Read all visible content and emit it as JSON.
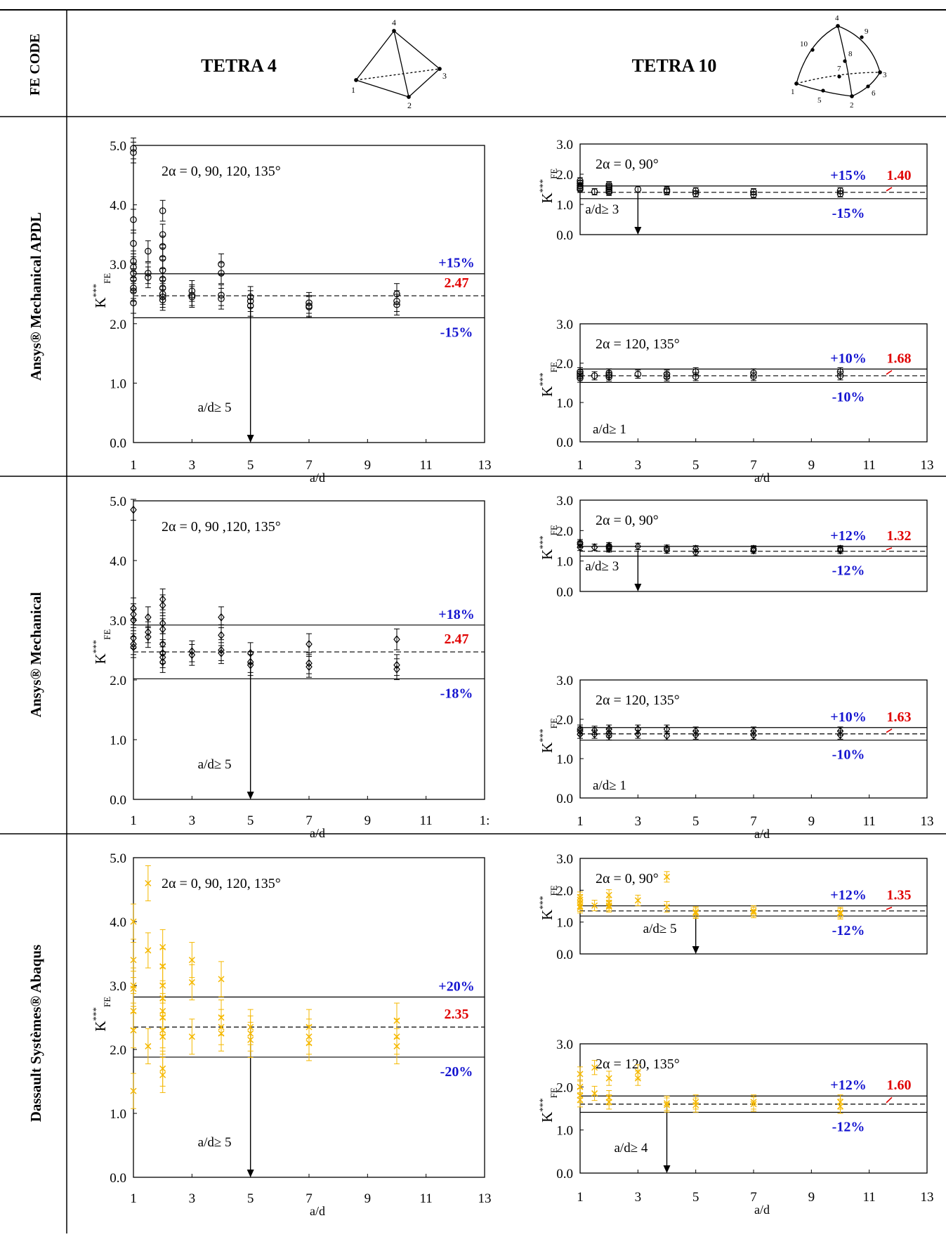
{
  "header": {
    "col_label": "FE CODE",
    "tetra4_label": "TETRA 4",
    "tetra10_label": "TETRA 10",
    "tetra4_nodes": [
      "1",
      "2",
      "3",
      "4"
    ],
    "tetra10_nodes": [
      "1",
      "2",
      "3",
      "4",
      "5",
      "6",
      "7",
      "8",
      "9",
      "10"
    ]
  },
  "rows": [
    {
      "label": "Ansys® Mechanical APDL"
    },
    {
      "label": "Ansys® Mechanical"
    },
    {
      "label": "Dassault Systèmes® Abaqus"
    }
  ],
  "colors": {
    "black": "#000000",
    "orange": "#f5b800",
    "blue": "#1515d0",
    "red": "#e00000"
  },
  "chart_data": [
    {
      "type": "scatter",
      "row": 0,
      "element": "TETRA 4",
      "title": "2α = 0, 90, 120, 135°",
      "xlabel": "a/d",
      "ylabel": "K***FE",
      "xlim": [
        1,
        13
      ],
      "ylim": [
        0,
        5
      ],
      "xticks": [
        "1",
        "3",
        "5",
        "7",
        "9",
        "11",
        "13"
      ],
      "yticks": [
        "0.0",
        "1.0",
        "2.0",
        "3.0",
        "4.0",
        "5.0"
      ],
      "mean": 2.47,
      "mean_label": "2.47",
      "upper": 2.84,
      "upper_label": "+15%",
      "lower": 2.1,
      "lower_label": "-15%",
      "threshold": 5,
      "threshold_label": "a/d≥ 5",
      "marker": "circle",
      "color": "#000000",
      "points": [
        {
          "x": 1,
          "y": 4.95
        },
        {
          "x": 1,
          "y": 4.88
        },
        {
          "x": 1,
          "y": 3.75
        },
        {
          "x": 1,
          "y": 3.35
        },
        {
          "x": 1,
          "y": 3.05
        },
        {
          "x": 1,
          "y": 2.95
        },
        {
          "x": 1,
          "y": 2.85
        },
        {
          "x": 1,
          "y": 2.75
        },
        {
          "x": 1,
          "y": 2.6
        },
        {
          "x": 1,
          "y": 2.55
        },
        {
          "x": 1,
          "y": 2.35
        },
        {
          "x": 1.5,
          "y": 3.22
        },
        {
          "x": 1.5,
          "y": 2.85
        },
        {
          "x": 1.5,
          "y": 2.78
        },
        {
          "x": 2,
          "y": 3.9
        },
        {
          "x": 2,
          "y": 3.5
        },
        {
          "x": 2,
          "y": 3.3
        },
        {
          "x": 2,
          "y": 3.1
        },
        {
          "x": 2,
          "y": 2.9
        },
        {
          "x": 2,
          "y": 2.75
        },
        {
          "x": 2,
          "y": 2.6
        },
        {
          "x": 2,
          "y": 2.5
        },
        {
          "x": 2,
          "y": 2.45
        },
        {
          "x": 2,
          "y": 2.4
        },
        {
          "x": 3,
          "y": 2.55
        },
        {
          "x": 3,
          "y": 2.48
        },
        {
          "x": 3,
          "y": 2.45
        },
        {
          "x": 4,
          "y": 3.0
        },
        {
          "x": 4,
          "y": 2.85
        },
        {
          "x": 4,
          "y": 2.48
        },
        {
          "x": 4,
          "y": 2.42
        },
        {
          "x": 5,
          "y": 2.45
        },
        {
          "x": 5,
          "y": 2.38
        },
        {
          "x": 5,
          "y": 2.3
        },
        {
          "x": 7,
          "y": 2.35
        },
        {
          "x": 7,
          "y": 2.3
        },
        {
          "x": 7,
          "y": 2.28
        },
        {
          "x": 10,
          "y": 2.5
        },
        {
          "x": 10,
          "y": 2.38
        },
        {
          "x": 10,
          "y": 2.32
        }
      ]
    },
    {
      "type": "scatter",
      "row": 0,
      "element": "TETRA 10",
      "title": "2α = 0, 90°",
      "xlabel": "",
      "ylabel": "K***FE",
      "xlim": [
        1,
        13
      ],
      "ylim": [
        0,
        3
      ],
      "xticks": [],
      "yticks": [
        "0.0",
        "1.0",
        "2.0",
        "3.0"
      ],
      "mean": 1.4,
      "mean_label": "1.40",
      "upper": 1.61,
      "upper_label": "+15%",
      "lower": 1.19,
      "lower_label": "-15%",
      "threshold": 3,
      "threshold_label": "a/d≥ 3",
      "marker": "circle",
      "color": "#000000",
      "points": [
        {
          "x": 1,
          "y": 1.78
        },
        {
          "x": 1,
          "y": 1.7
        },
        {
          "x": 1,
          "y": 1.62
        },
        {
          "x": 1,
          "y": 1.55
        },
        {
          "x": 1,
          "y": 1.5
        },
        {
          "x": 1.5,
          "y": 1.42
        },
        {
          "x": 2,
          "y": 1.65
        },
        {
          "x": 2,
          "y": 1.58
        },
        {
          "x": 2,
          "y": 1.52
        },
        {
          "x": 2,
          "y": 1.45
        },
        {
          "x": 2,
          "y": 1.4
        },
        {
          "x": 3,
          "y": 1.5
        },
        {
          "x": 4,
          "y": 1.48
        },
        {
          "x": 4,
          "y": 1.42
        },
        {
          "x": 5,
          "y": 1.45
        },
        {
          "x": 5,
          "y": 1.35
        },
        {
          "x": 7,
          "y": 1.42
        },
        {
          "x": 7,
          "y": 1.32
        },
        {
          "x": 10,
          "y": 1.45
        },
        {
          "x": 10,
          "y": 1.35
        }
      ]
    },
    {
      "type": "scatter",
      "row": 0,
      "element": "TETRA 10",
      "title": "2α = 120, 135°",
      "xlabel": "a/d",
      "ylabel": "K***FE",
      "xlim": [
        1,
        13
      ],
      "ylim": [
        0,
        3
      ],
      "xticks": [
        "1",
        "3",
        "5",
        "7",
        "9",
        "11",
        "13"
      ],
      "yticks": [
        "0.0",
        "1.0",
        "2.0",
        "3.0"
      ],
      "mean": 1.68,
      "mean_label": "1.68",
      "upper": 1.85,
      "upper_label": "+10%",
      "lower": 1.51,
      "lower_label": "-10%",
      "threshold": 1,
      "threshold_label": "a/d≥ 1",
      "marker": "circle",
      "color": "#000000",
      "points": [
        {
          "x": 1,
          "y": 1.78
        },
        {
          "x": 1,
          "y": 1.72
        },
        {
          "x": 1,
          "y": 1.68
        },
        {
          "x": 1,
          "y": 1.62
        },
        {
          "x": 1.5,
          "y": 1.68
        },
        {
          "x": 2,
          "y": 1.75
        },
        {
          "x": 2,
          "y": 1.7
        },
        {
          "x": 2,
          "y": 1.65
        },
        {
          "x": 3,
          "y": 1.72
        },
        {
          "x": 4,
          "y": 1.72
        },
        {
          "x": 4,
          "y": 1.65
        },
        {
          "x": 5,
          "y": 1.78
        },
        {
          "x": 5,
          "y": 1.66
        },
        {
          "x": 7,
          "y": 1.75
        },
        {
          "x": 7,
          "y": 1.66
        },
        {
          "x": 10,
          "y": 1.78
        },
        {
          "x": 10,
          "y": 1.68
        }
      ]
    },
    {
      "type": "scatter",
      "row": 1,
      "element": "TETRA 4",
      "title": "2α = 0, 90 ,120, 135°",
      "xlabel": "a/d",
      "ylabel": "K***FE",
      "xlim": [
        1,
        13
      ],
      "ylim": [
        0,
        5
      ],
      "xticks": [
        "1",
        "3",
        "5",
        "7",
        "9",
        "11",
        "1:"
      ],
      "yticks": [
        "0.0",
        "1.0",
        "2.0",
        "3.0",
        "4.0",
        "5.0"
      ],
      "mean": 2.47,
      "mean_label": "2.47",
      "upper": 2.92,
      "upper_label": "+18%",
      "lower": 2.02,
      "lower_label": "-18%",
      "threshold": 5,
      "threshold_label": "a/d≥ 5",
      "marker": "diamond",
      "color": "#000000",
      "points": [
        {
          "x": 1,
          "y": 4.85
        },
        {
          "x": 1,
          "y": 3.2
        },
        {
          "x": 1,
          "y": 3.1
        },
        {
          "x": 1,
          "y": 3.0
        },
        {
          "x": 1,
          "y": 2.7
        },
        {
          "x": 1,
          "y": 2.6
        },
        {
          "x": 1,
          "y": 2.55
        },
        {
          "x": 1.5,
          "y": 3.05
        },
        {
          "x": 1.5,
          "y": 2.8
        },
        {
          "x": 1.5,
          "y": 2.72
        },
        {
          "x": 2,
          "y": 3.35
        },
        {
          "x": 2,
          "y": 3.25
        },
        {
          "x": 2,
          "y": 2.95
        },
        {
          "x": 2,
          "y": 2.85
        },
        {
          "x": 2,
          "y": 2.6
        },
        {
          "x": 2,
          "y": 2.45
        },
        {
          "x": 2,
          "y": 2.38
        },
        {
          "x": 2,
          "y": 2.3
        },
        {
          "x": 3,
          "y": 2.48
        },
        {
          "x": 3,
          "y": 2.42
        },
        {
          "x": 4,
          "y": 3.05
        },
        {
          "x": 4,
          "y": 2.75
        },
        {
          "x": 4,
          "y": 2.5
        },
        {
          "x": 4,
          "y": 2.45
        },
        {
          "x": 5,
          "y": 2.45
        },
        {
          "x": 5,
          "y": 2.3
        },
        {
          "x": 5,
          "y": 2.25
        },
        {
          "x": 7,
          "y": 2.6
        },
        {
          "x": 7,
          "y": 2.28
        },
        {
          "x": 7,
          "y": 2.22
        },
        {
          "x": 10,
          "y": 2.68
        },
        {
          "x": 10,
          "y": 2.25
        },
        {
          "x": 10,
          "y": 2.18
        }
      ]
    },
    {
      "type": "scatter",
      "row": 1,
      "element": "TETRA 10",
      "title": "2α = 0, 90°",
      "xlabel": "",
      "ylabel": "K***FE",
      "xlim": [
        1,
        13
      ],
      "ylim": [
        0,
        3
      ],
      "xticks": [],
      "yticks": [
        "0.0",
        "1.0",
        "2.0",
        "3.0"
      ],
      "mean": 1.32,
      "mean_label": "1.32",
      "upper": 1.48,
      "upper_label": "+12%",
      "lower": 1.16,
      "lower_label": "-12%",
      "threshold": 3,
      "threshold_label": "a/d≥ 3",
      "marker": "diamond",
      "color": "#000000",
      "points": [
        {
          "x": 1,
          "y": 1.6
        },
        {
          "x": 1,
          "y": 1.55
        },
        {
          "x": 1,
          "y": 1.45
        },
        {
          "x": 1.5,
          "y": 1.45
        },
        {
          "x": 2,
          "y": 1.5
        },
        {
          "x": 2,
          "y": 1.45
        },
        {
          "x": 2,
          "y": 1.4
        },
        {
          "x": 3,
          "y": 1.48
        },
        {
          "x": 4,
          "y": 1.42
        },
        {
          "x": 4,
          "y": 1.36
        },
        {
          "x": 5,
          "y": 1.4
        },
        {
          "x": 5,
          "y": 1.28
        },
        {
          "x": 7,
          "y": 1.4
        },
        {
          "x": 7,
          "y": 1.35
        },
        {
          "x": 10,
          "y": 1.4
        },
        {
          "x": 10,
          "y": 1.35
        }
      ]
    },
    {
      "type": "scatter",
      "row": 1,
      "element": "TETRA 10",
      "title": "2α = 120, 135°",
      "xlabel": "a/d",
      "ylabel": "K***FE",
      "xlim": [
        1,
        13
      ],
      "ylim": [
        0,
        3
      ],
      "xticks": [
        "1",
        "3",
        "5",
        "7",
        "9",
        "11",
        "13"
      ],
      "yticks": [
        "0.0",
        "1.0",
        "2.0",
        "3.0"
      ],
      "mean": 1.63,
      "mean_label": "1.63",
      "upper": 1.79,
      "upper_label": "+10%",
      "lower": 1.47,
      "lower_label": "-10%",
      "threshold": 1,
      "threshold_label": "a/d≥ 1",
      "marker": "diamond",
      "color": "#000000",
      "points": [
        {
          "x": 1,
          "y": 1.75
        },
        {
          "x": 1,
          "y": 1.7
        },
        {
          "x": 1,
          "y": 1.62
        },
        {
          "x": 1.5,
          "y": 1.72
        },
        {
          "x": 1.5,
          "y": 1.62
        },
        {
          "x": 2,
          "y": 1.75
        },
        {
          "x": 2,
          "y": 1.65
        },
        {
          "x": 2,
          "y": 1.58
        },
        {
          "x": 3,
          "y": 1.75
        },
        {
          "x": 3,
          "y": 1.62
        },
        {
          "x": 4,
          "y": 1.75
        },
        {
          "x": 4,
          "y": 1.58
        },
        {
          "x": 5,
          "y": 1.7
        },
        {
          "x": 5,
          "y": 1.6
        },
        {
          "x": 7,
          "y": 1.7
        },
        {
          "x": 7,
          "y": 1.6
        },
        {
          "x": 10,
          "y": 1.7
        },
        {
          "x": 10,
          "y": 1.6
        }
      ]
    },
    {
      "type": "scatter",
      "row": 2,
      "element": "TETRA 4",
      "title": "2α = 0, 90, 120, 135°",
      "xlabel": "a/d",
      "ylabel": "K***FE",
      "xlim": [
        1,
        13
      ],
      "ylim": [
        0,
        5
      ],
      "xticks": [
        "1",
        "3",
        "5",
        "7",
        "9",
        "11",
        "13"
      ],
      "yticks": [
        "0.0",
        "1.0",
        "2.0",
        "3.0",
        "4.0",
        "5.0"
      ],
      "mean": 2.35,
      "mean_label": "2.35",
      "upper": 2.82,
      "upper_label": "+20%",
      "lower": 1.88,
      "lower_label": "-20%",
      "threshold": 5,
      "threshold_label": "a/d≥ 5",
      "marker": "x",
      "color": "#f5b800",
      "points": [
        {
          "x": 1,
          "y": 4.0
        },
        {
          "x": 1,
          "y": 3.4
        },
        {
          "x": 1,
          "y": 3.0
        },
        {
          "x": 1,
          "y": 2.95
        },
        {
          "x": 1,
          "y": 2.6
        },
        {
          "x": 1,
          "y": 2.3
        },
        {
          "x": 1,
          "y": 1.35
        },
        {
          "x": 1.5,
          "y": 4.6
        },
        {
          "x": 1.5,
          "y": 3.55
        },
        {
          "x": 1.5,
          "y": 2.05
        },
        {
          "x": 2,
          "y": 3.6
        },
        {
          "x": 2,
          "y": 3.3
        },
        {
          "x": 2,
          "y": 3.0
        },
        {
          "x": 2,
          "y": 2.8
        },
        {
          "x": 2,
          "y": 2.6
        },
        {
          "x": 2,
          "y": 2.5
        },
        {
          "x": 2,
          "y": 2.3
        },
        {
          "x": 2,
          "y": 2.2
        },
        {
          "x": 2,
          "y": 1.7
        },
        {
          "x": 2,
          "y": 1.6
        },
        {
          "x": 3,
          "y": 3.4
        },
        {
          "x": 3,
          "y": 3.05
        },
        {
          "x": 3,
          "y": 2.2
        },
        {
          "x": 4,
          "y": 3.1
        },
        {
          "x": 4,
          "y": 2.5
        },
        {
          "x": 4,
          "y": 2.35
        },
        {
          "x": 4,
          "y": 2.25
        },
        {
          "x": 5,
          "y": 2.35
        },
        {
          "x": 5,
          "y": 2.25
        },
        {
          "x": 5,
          "y": 2.15
        },
        {
          "x": 7,
          "y": 2.35
        },
        {
          "x": 7,
          "y": 2.2
        },
        {
          "x": 7,
          "y": 2.1
        },
        {
          "x": 10,
          "y": 2.45
        },
        {
          "x": 10,
          "y": 2.2
        },
        {
          "x": 10,
          "y": 2.05
        }
      ]
    },
    {
      "type": "scatter",
      "row": 2,
      "element": "TETRA 10",
      "title": "2α = 0, 90°",
      "xlabel": "",
      "ylabel": "K***FE",
      "xlim": [
        1,
        13
      ],
      "ylim": [
        0,
        3
      ],
      "xticks": [],
      "yticks": [
        "0.0",
        "1.0",
        "2.0",
        "3.0"
      ],
      "mean": 1.35,
      "mean_label": "1.35",
      "upper": 1.51,
      "upper_label": "+12%",
      "lower": 1.19,
      "lower_label": "-12%",
      "threshold": 5,
      "threshold_label": "a/d≥ 5",
      "marker": "x",
      "color": "#f5b800",
      "points": [
        {
          "x": 1,
          "y": 1.78
        },
        {
          "x": 1,
          "y": 1.7
        },
        {
          "x": 1,
          "y": 1.6
        },
        {
          "x": 1,
          "y": 1.5
        },
        {
          "x": 1,
          "y": 1.45
        },
        {
          "x": 1.5,
          "y": 1.52
        },
        {
          "x": 2,
          "y": 1.85
        },
        {
          "x": 2,
          "y": 1.6
        },
        {
          "x": 2,
          "y": 1.52
        },
        {
          "x": 2,
          "y": 1.48
        },
        {
          "x": 3,
          "y": 1.68
        },
        {
          "x": 4,
          "y": 2.42
        },
        {
          "x": 4,
          "y": 1.48
        },
        {
          "x": 5,
          "y": 1.32
        },
        {
          "x": 5,
          "y": 1.28
        },
        {
          "x": 7,
          "y": 1.35
        },
        {
          "x": 7,
          "y": 1.3
        },
        {
          "x": 10,
          "y": 1.3
        },
        {
          "x": 10,
          "y": 1.26
        }
      ]
    },
    {
      "type": "scatter",
      "row": 2,
      "element": "TETRA 10",
      "title": "2α = 120, 135°",
      "xlabel": "a/d",
      "ylabel": "K***FE",
      "xlim": [
        1,
        13
      ],
      "ylim": [
        0,
        3
      ],
      "xticks": [
        "1",
        "3",
        "5",
        "7",
        "9",
        "11",
        "13"
      ],
      "yticks": [
        "0.0",
        "1.0",
        "2.0",
        "3.0"
      ],
      "mean": 1.6,
      "mean_label": "1.60",
      "upper": 1.79,
      "upper_label": "+12%",
      "lower": 1.41,
      "lower_label": "-12%",
      "threshold": 4,
      "threshold_label": "a/d≥ 4",
      "marker": "x",
      "color": "#f5b800",
      "points": [
        {
          "x": 1,
          "y": 2.3
        },
        {
          "x": 1,
          "y": 2.0
        },
        {
          "x": 1,
          "y": 1.8
        },
        {
          "x": 1,
          "y": 1.7
        },
        {
          "x": 1.5,
          "y": 2.45
        },
        {
          "x": 1.5,
          "y": 1.85
        },
        {
          "x": 2,
          "y": 2.2
        },
        {
          "x": 2,
          "y": 1.75
        },
        {
          "x": 2,
          "y": 1.65
        },
        {
          "x": 3,
          "y": 2.35
        },
        {
          "x": 3,
          "y": 2.2
        },
        {
          "x": 4,
          "y": 1.62
        },
        {
          "x": 4,
          "y": 1.58
        },
        {
          "x": 5,
          "y": 1.65
        },
        {
          "x": 5,
          "y": 1.58
        },
        {
          "x": 7,
          "y": 1.65
        },
        {
          "x": 7,
          "y": 1.6
        },
        {
          "x": 10,
          "y": 1.65
        },
        {
          "x": 10,
          "y": 1.55
        }
      ]
    }
  ]
}
